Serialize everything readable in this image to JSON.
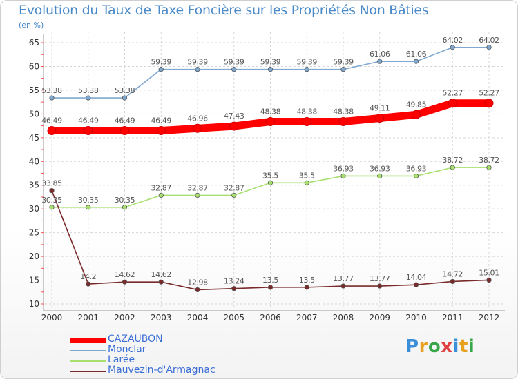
{
  "title": "Evolution du Taux de Taxe Foncière sur les Propriétés Non Bâties",
  "unit_label": "(en %)",
  "logo": {
    "letters": [
      "P",
      "r",
      "o",
      "x",
      "i",
      "t",
      "i"
    ],
    "colors": [
      "#3b8fd9",
      "#e8a020",
      "#3aa64a",
      "#e04040",
      "#3b8fd9",
      "#e8a020",
      "#3aa64a"
    ]
  },
  "chart_data": {
    "type": "line",
    "title": "Evolution du Taux de Taxe Foncière sur les Propriétés Non Bâties",
    "ylabel": "(en %)",
    "xlabel": "",
    "categories": [
      "2000",
      "2001",
      "2002",
      "2003",
      "2004",
      "2005",
      "2006",
      "2007",
      "2008",
      "2009",
      "2010",
      "2011",
      "2012"
    ],
    "ylim": [
      10,
      65
    ],
    "yticks": [
      10,
      15,
      20,
      25,
      30,
      35,
      40,
      45,
      50,
      55,
      60,
      65
    ],
    "grid": true,
    "series": [
      {
        "name": "CAZAUBON",
        "color": "#ff0000",
        "highlight": true,
        "values": [
          46.49,
          46.49,
          46.49,
          46.49,
          46.96,
          47.43,
          48.38,
          48.38,
          48.38,
          49.11,
          49.85,
          52.27,
          52.27
        ],
        "labels": [
          "46.49",
          "46.49",
          "46.49",
          "46.49",
          "46.96",
          "47.43",
          "48.38",
          "48.38",
          "48.38",
          "49.11",
          "49.85",
          "52.27",
          "52.27"
        ]
      },
      {
        "name": "Monclar",
        "color": "#7fa8d0",
        "highlight": false,
        "values": [
          53.38,
          53.38,
          53.38,
          59.39,
          59.39,
          59.39,
          59.39,
          59.39,
          59.39,
          61.06,
          61.06,
          64.02,
          64.02
        ],
        "labels": [
          "53.38",
          "53.38",
          "53.38",
          "59.39",
          "59.39",
          "59.39",
          "59.39",
          "59.39",
          "59.39",
          "61.06",
          "61.06",
          "64.02",
          "64.02"
        ]
      },
      {
        "name": "Larée",
        "color": "#a8e070",
        "highlight": false,
        "values": [
          30.35,
          30.35,
          30.35,
          32.87,
          32.87,
          32.87,
          35.5,
          35.5,
          36.93,
          36.93,
          36.93,
          38.72,
          38.72
        ],
        "labels": [
          "30.35",
          "30.35",
          "30.35",
          "32.87",
          "32.87",
          "32.87",
          "35.5",
          "35.5",
          "36.93",
          "36.93",
          "36.93",
          "38.72",
          "38.72"
        ]
      },
      {
        "name": "Mauvezin-d'Armagnac",
        "color": "#7a2a2a",
        "highlight": false,
        "values": [
          33.85,
          14.2,
          14.62,
          14.62,
          12.98,
          13.24,
          13.5,
          13.5,
          13.77,
          13.77,
          14.04,
          14.72,
          15.01
        ],
        "labels": [
          "33.85",
          "14.2",
          "14.62",
          "14.62",
          "12.98",
          "13.24",
          "13.5",
          "13.5",
          "13.77",
          "13.77",
          "14.04",
          "14.72",
          "15.01"
        ]
      }
    ]
  }
}
